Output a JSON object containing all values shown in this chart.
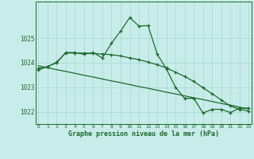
{
  "background_color": "#c8ece9",
  "grid_color": "#a8dcd8",
  "line_color": "#1a6b2a",
  "hours": [
    0,
    1,
    2,
    3,
    4,
    5,
    6,
    7,
    8,
    9,
    10,
    11,
    12,
    13,
    14,
    15,
    16,
    17,
    18,
    19,
    20,
    21,
    22,
    23
  ],
  "line1": [
    1023.7,
    1023.85,
    1024.0,
    1024.42,
    1024.42,
    1024.35,
    1024.42,
    1024.2,
    1024.8,
    1025.3,
    1025.85,
    1025.5,
    1025.52,
    1024.35,
    1023.75,
    1023.0,
    1022.55,
    1022.55,
    1021.95,
    1022.1,
    1022.1,
    1021.97,
    1022.15,
    1022.15
  ],
  "line2": [
    1023.78,
    1023.83,
    1024.03,
    1024.4,
    1024.4,
    1024.4,
    1024.38,
    1024.36,
    1024.33,
    1024.28,
    1024.2,
    1024.13,
    1024.03,
    1023.92,
    1023.79,
    1023.62,
    1023.44,
    1023.24,
    1022.98,
    1022.74,
    1022.48,
    1022.24,
    1022.1,
    1022.03
  ],
  "line3": [
    1023.88,
    1023.8,
    1023.72,
    1023.65,
    1023.57,
    1023.49,
    1023.42,
    1023.34,
    1023.26,
    1023.19,
    1023.11,
    1023.03,
    1022.96,
    1022.88,
    1022.8,
    1022.73,
    1022.65,
    1022.57,
    1022.5,
    1022.42,
    1022.34,
    1022.27,
    1022.19,
    1022.11
  ],
  "ylim": [
    1021.5,
    1026.5
  ],
  "yticks": [
    1022,
    1023,
    1024,
    1025
  ],
  "xlabel": "Graphe pression niveau de la mer (hPa)",
  "marker": "+"
}
